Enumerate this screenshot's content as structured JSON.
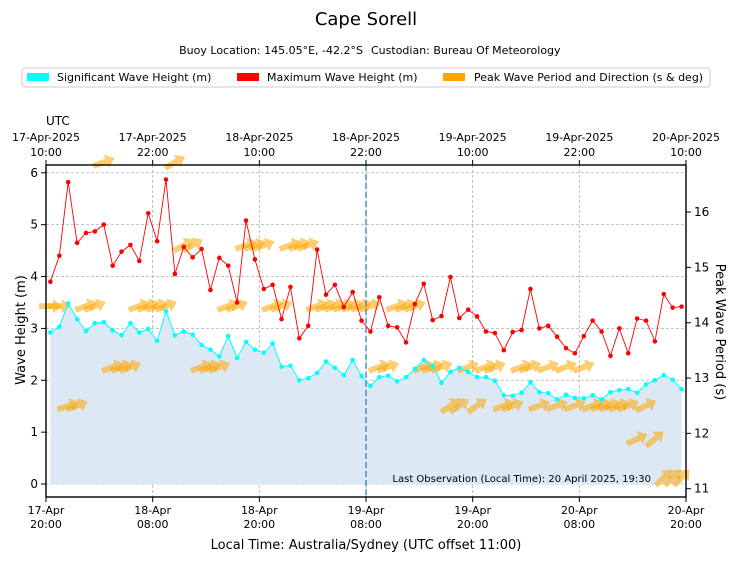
{
  "colors": {
    "sig": "#00ffff",
    "max": "#ff0000",
    "arrow": "#ffa500",
    "fill": "#dce8f4",
    "obs_line": "#1f77b4"
  },
  "chart_data": {
    "type": "line",
    "title": "Cape Sorell",
    "buoy_location": "Buoy Location: 145.05°E, -42.2°S",
    "custodian": "Custodian: Bureau Of Meteorology",
    "legend": [
      {
        "label": "Significant Wave Height (m)"
      },
      {
        "label": "Maximum Wave Height (m)"
      },
      {
        "label": "Peak Wave Period and Direction (s & deg)"
      }
    ],
    "xlabel": "Local Time: Australia/Sydney (UTC offset 11:00)",
    "ylabel": "Wave Height (m)",
    "y2label": "Peak Wave Period (s)",
    "utc_label": "UTC",
    "xlim": [
      0,
      72
    ],
    "ylim": [
      -0.25,
      6.15
    ],
    "y2lim": [
      10.85,
      16.85
    ],
    "yticks": [
      0,
      1,
      2,
      3,
      4,
      5,
      6
    ],
    "y2ticks": [
      11,
      12,
      13,
      14,
      15,
      16
    ],
    "bottom_ticks": [
      {
        "t": 0,
        "line1": "17-Apr",
        "line2": "20:00"
      },
      {
        "t": 12,
        "line1": "18-Apr",
        "line2": "08:00"
      },
      {
        "t": 24,
        "line1": "18-Apr",
        "line2": "20:00"
      },
      {
        "t": 36,
        "line1": "19-Apr",
        "line2": "08:00"
      },
      {
        "t": 48,
        "line1": "19-Apr",
        "line2": "20:00"
      },
      {
        "t": 60,
        "line1": "20-Apr",
        "line2": "08:00"
      },
      {
        "t": 72,
        "line1": "20-Apr",
        "line2": "20:00"
      }
    ],
    "top_ticks": [
      {
        "t": 0,
        "line1": "17-Apr-2025",
        "line2": "10:00"
      },
      {
        "t": 12,
        "line1": "17-Apr-2025",
        "line2": "22:00"
      },
      {
        "t": 24,
        "line1": "18-Apr-2025",
        "line2": "10:00"
      },
      {
        "t": 36,
        "line1": "18-Apr-2025",
        "line2": "22:00"
      },
      {
        "t": 48,
        "line1": "19-Apr-2025",
        "line2": "10:00"
      },
      {
        "t": 60,
        "line1": "19-Apr-2025",
        "line2": "22:00"
      },
      {
        "t": 72,
        "line1": "20-Apr-2025",
        "line2": "10:00"
      }
    ],
    "obs_time": 36,
    "last_observation": "Last Observation (Local Time): 20 April 2025, 19:30",
    "series": [
      {
        "name": "Significant Wave Height (m)",
        "x": [
          0.5,
          1.5,
          2.5,
          3.5,
          4.5,
          5.5,
          6.5,
          7.5,
          8.5,
          9.5,
          10.5,
          11.5,
          12.5,
          13.5,
          14.5,
          15.5,
          16.5,
          17.5,
          18.5,
          19.5,
          20.5,
          21.5,
          22.5,
          23.5,
          24.5,
          25.5,
          26.5,
          27.5,
          28.5,
          29.5,
          30.5,
          31.5,
          32.5,
          33.5,
          34.5,
          35.5,
          36.5,
          37.5,
          38.5,
          39.5,
          40.5,
          41.5,
          42.5,
          43.5,
          44.5,
          45.5,
          46.5,
          47.5,
          48.5,
          49.5,
          50.5,
          51.5,
          52.5,
          53.5,
          54.5,
          55.5,
          56.5,
          57.5,
          58.5,
          59.5,
          60.5,
          61.5,
          62.5,
          63.5,
          64.5,
          65.5,
          66.5,
          67.5,
          68.5,
          69.5,
          70.5,
          71.5
        ],
        "values": [
          2.92,
          3.03,
          3.48,
          3.18,
          2.95,
          3.1,
          3.12,
          2.96,
          2.87,
          3.1,
          2.92,
          2.99,
          2.76,
          3.33,
          2.87,
          2.94,
          2.88,
          2.68,
          2.59,
          2.46,
          2.85,
          2.43,
          2.74,
          2.59,
          2.53,
          2.71,
          2.26,
          2.28,
          2.0,
          2.04,
          2.14,
          2.36,
          2.24,
          2.1,
          2.39,
          2.08,
          1.89,
          2.06,
          2.09,
          1.98,
          2.06,
          2.22,
          2.39,
          2.27,
          1.95,
          2.16,
          2.24,
          2.16,
          2.06,
          2.06,
          1.99,
          1.71,
          1.7,
          1.76,
          1.96,
          1.77,
          1.75,
          1.63,
          1.72,
          1.66,
          1.65,
          1.71,
          1.63,
          1.77,
          1.81,
          1.83,
          1.76,
          1.92,
          2.0,
          2.1,
          2.01,
          1.83
        ]
      },
      {
        "name": "Maximum Wave Height (m)",
        "x": [
          0.5,
          1.5,
          2.5,
          3.5,
          4.5,
          5.5,
          6.5,
          7.5,
          8.5,
          9.5,
          10.5,
          11.5,
          12.5,
          13.5,
          14.5,
          15.5,
          16.5,
          17.5,
          18.5,
          19.5,
          20.5,
          21.5,
          22.5,
          23.5,
          24.5,
          25.5,
          26.5,
          27.5,
          28.5,
          29.5,
          30.5,
          31.5,
          32.5,
          33.5,
          34.5,
          35.5,
          36.5,
          37.5,
          38.5,
          39.5,
          40.5,
          41.5,
          42.5,
          43.5,
          44.5,
          45.5,
          46.5,
          47.5,
          48.5,
          49.5,
          50.5,
          51.5,
          52.5,
          53.5,
          54.5,
          55.5,
          56.5,
          57.5,
          58.5,
          59.5,
          60.5,
          61.5,
          62.5,
          63.5,
          64.5,
          65.5,
          66.5,
          67.5,
          68.5,
          69.5,
          70.5,
          71.5
        ],
        "values": [
          3.9,
          4.4,
          5.82,
          4.65,
          4.84,
          4.87,
          5.0,
          4.21,
          4.48,
          4.61,
          4.3,
          5.22,
          4.68,
          5.87,
          4.05,
          4.57,
          4.37,
          4.53,
          3.74,
          4.36,
          4.21,
          3.5,
          5.08,
          4.33,
          3.76,
          3.84,
          3.18,
          3.8,
          2.81,
          3.05,
          4.52,
          3.65,
          3.84,
          3.41,
          3.7,
          3.15,
          2.94,
          3.6,
          3.05,
          3.02,
          2.73,
          3.47,
          3.86,
          3.16,
          3.24,
          3.99,
          3.2,
          3.36,
          3.23,
          2.94,
          2.91,
          2.58,
          2.93,
          2.97,
          3.76,
          3.0,
          3.05,
          2.84,
          2.62,
          2.52,
          2.85,
          3.15,
          2.94,
          2.47,
          3.0,
          2.52,
          3.19,
          3.15,
          2.75,
          3.66,
          3.4,
          3.42
        ]
      }
    ],
    "peak_period_direction": {
      "x": [
        0.5,
        1.5,
        2.5,
        3.5,
        4.5,
        5.5,
        6.5,
        7.5,
        8.5,
        9.5,
        10.5,
        11.5,
        12.5,
        13.5,
        14.5,
        15.5,
        16.5,
        17.5,
        18.5,
        19.5,
        20.5,
        21.5,
        22.5,
        23.5,
        24.5,
        25.5,
        26.5,
        27.5,
        28.5,
        29.5,
        30.5,
        31.5,
        32.5,
        33.5,
        34.5,
        35.5,
        36.5,
        37.5,
        38.5,
        39.5,
        40.5,
        41.5,
        42.5,
        43.5,
        44.5,
        45.5,
        46.5,
        47.5,
        48.5,
        49.5,
        50.5,
        51.5,
        52.5,
        53.5,
        54.5,
        55.5,
        56.5,
        57.5,
        58.5,
        59.5,
        60.5,
        61.5,
        62.5,
        63.5,
        64.5,
        65.5,
        66.5,
        67.5,
        68.5,
        69.5,
        70.5,
        71.5
      ],
      "period_s": [
        14.3,
        14.3,
        12.5,
        12.5,
        14.3,
        14.3,
        16.9,
        13.2,
        13.2,
        13.2,
        14.3,
        14.3,
        14.3,
        14.3,
        16.9,
        15.4,
        15.4,
        13.2,
        13.2,
        13.2,
        14.3,
        14.3,
        15.4,
        15.4,
        15.4,
        14.3,
        14.3,
        15.4,
        15.4,
        15.4,
        14.3,
        14.3,
        14.3,
        14.3,
        14.3,
        14.3,
        14.3,
        13.2,
        13.2,
        14.3,
        14.3,
        14.3,
        13.2,
        13.2,
        13.2,
        12.5,
        12.5,
        13.2,
        12.5,
        13.2,
        13.2,
        12.5,
        12.5,
        13.2,
        13.2,
        12.5,
        13.2,
        12.5,
        13.2,
        12.5,
        13.2,
        12.5,
        12.5,
        12.5,
        12.5,
        12.5,
        11.9,
        12.5,
        11.9,
        11.2,
        11.2,
        11.2
      ],
      "direction_deg": [
        270,
        270,
        250,
        250,
        250,
        250,
        250,
        250,
        250,
        250,
        250,
        250,
        250,
        250,
        240,
        240,
        240,
        250,
        250,
        250,
        250,
        250,
        250,
        250,
        250,
        250,
        250,
        250,
        250,
        250,
        250,
        250,
        250,
        250,
        250,
        250,
        250,
        250,
        250,
        250,
        250,
        250,
        250,
        250,
        250,
        235,
        235,
        250,
        235,
        250,
        250,
        250,
        250,
        250,
        250,
        250,
        250,
        250,
        250,
        250,
        250,
        250,
        250,
        250,
        250,
        250,
        245,
        245,
        230,
        225,
        225,
        225
      ]
    }
  }
}
